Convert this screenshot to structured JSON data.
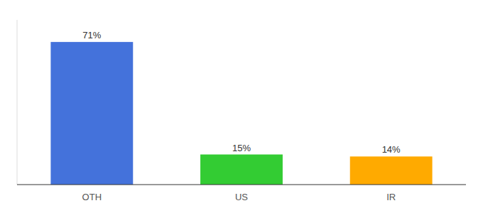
{
  "chart_data": {
    "type": "bar",
    "categories": [
      "OTH",
      "US",
      "IR"
    ],
    "values": [
      71,
      15,
      14
    ],
    "value_labels": [
      "71%",
      "15%",
      "14%"
    ],
    "colors": [
      "#4472db",
      "#33cc33",
      "#ffaa00"
    ],
    "ylim": [
      0,
      82
    ],
    "data_labels": true,
    "tick_labels": "x",
    "grid": false
  }
}
